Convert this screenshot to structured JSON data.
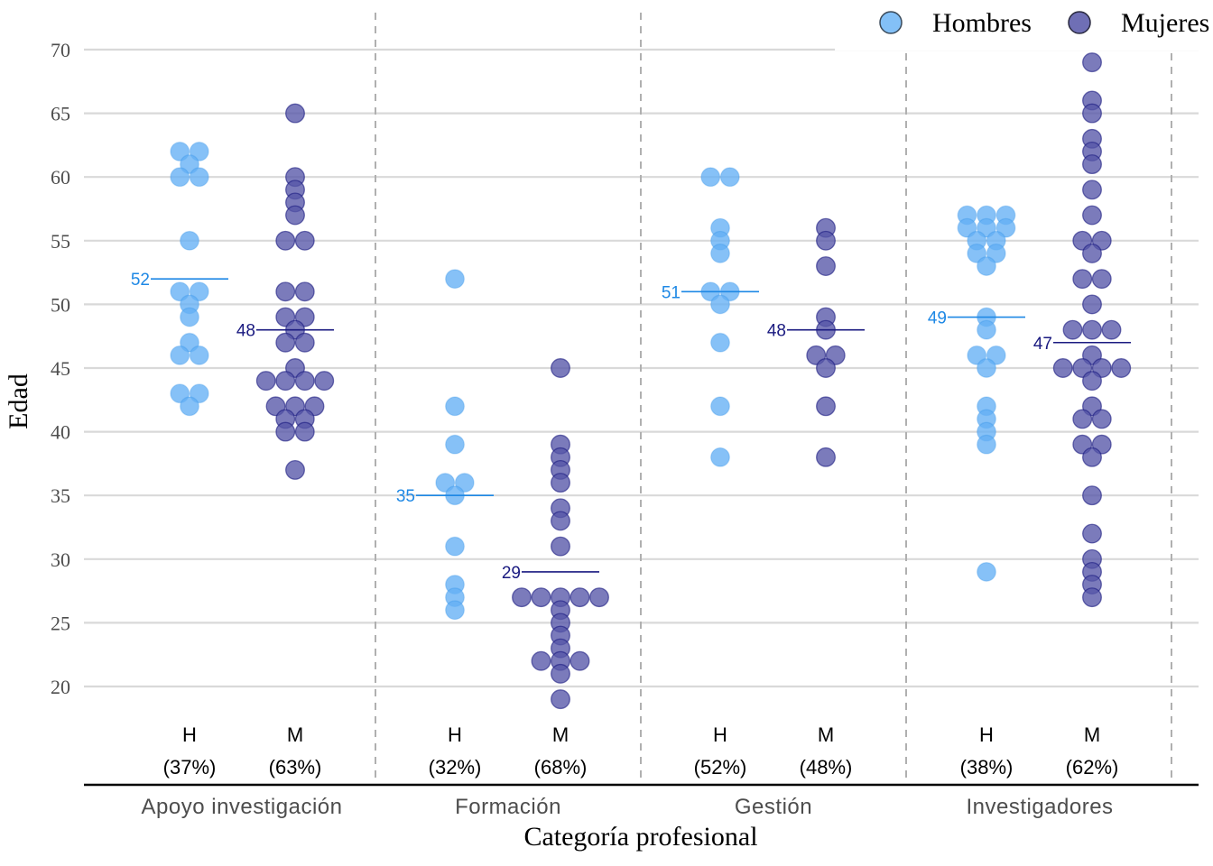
{
  "chart_data": {
    "type": "scatter",
    "xlabel": "Categoría profesional",
    "ylabel": "Edad",
    "ylim": [
      16,
      72
    ],
    "yticks": [
      20,
      25,
      30,
      35,
      40,
      45,
      50,
      55,
      60,
      65,
      70
    ],
    "grid": "horizontal",
    "legend": {
      "placement": "top-right",
      "entries": [
        {
          "name": "Hombres",
          "color": "#1e88e5"
        },
        {
          "name": "Mujeres",
          "color": "#1a1a80"
        }
      ]
    },
    "categories": [
      "Apoyo investigación",
      "Formación",
      "Gestión",
      "Investigadores"
    ],
    "groups": [
      {
        "category": "Apoyo investigación",
        "sex": "H",
        "label": "H",
        "pct": "(37%)",
        "mean": 52,
        "values": [
          62,
          62,
          61,
          60,
          60,
          55,
          51,
          51,
          50,
          49,
          47,
          46,
          46,
          43,
          43,
          42
        ]
      },
      {
        "category": "Apoyo investigación",
        "sex": "M",
        "label": "M",
        "pct": "(63%)",
        "mean": 48,
        "values": [
          65,
          60,
          59,
          58,
          57,
          55,
          55,
          51,
          51,
          49,
          49,
          48,
          47,
          47,
          45,
          44,
          44,
          44,
          44,
          42,
          42,
          42,
          41,
          41,
          40,
          40,
          37
        ]
      },
      {
        "category": "Formación",
        "sex": "H",
        "label": "H",
        "pct": "(32%)",
        "mean": 35,
        "values": [
          52,
          42,
          39,
          36,
          36,
          35,
          31,
          28,
          27,
          26
        ]
      },
      {
        "category": "Formación",
        "sex": "M",
        "label": "M",
        "pct": "(68%)",
        "mean": 29,
        "values": [
          45,
          39,
          38,
          37,
          36,
          34,
          33,
          31,
          27,
          27,
          27,
          27,
          27,
          26,
          25,
          24,
          23,
          22,
          22,
          22,
          21,
          19
        ]
      },
      {
        "category": "Gestión",
        "sex": "H",
        "label": "H",
        "pct": "(52%)",
        "mean": 51,
        "values": [
          60,
          60,
          56,
          55,
          54,
          51,
          51,
          50,
          47,
          42,
          38
        ]
      },
      {
        "category": "Gestión",
        "sex": "M",
        "label": "M",
        "pct": "(48%)",
        "mean": 48,
        "values": [
          56,
          55,
          53,
          49,
          48,
          46,
          46,
          45,
          42,
          38
        ]
      },
      {
        "category": "Investigadores",
        "sex": "H",
        "label": "H",
        "pct": "(38%)",
        "mean": 49,
        "values": [
          57,
          57,
          57,
          56,
          56,
          56,
          55,
          55,
          54,
          54,
          53,
          49,
          48,
          46,
          46,
          45,
          42,
          41,
          40,
          39,
          29
        ]
      },
      {
        "category": "Investigadores",
        "sex": "M",
        "label": "M",
        "pct": "(62%)",
        "mean": 47,
        "values": [
          69,
          66,
          65,
          63,
          62,
          61,
          59,
          57,
          55,
          55,
          54,
          52,
          52,
          50,
          48,
          48,
          48,
          46,
          45,
          45,
          45,
          45,
          44,
          42,
          41,
          41,
          39,
          39,
          38,
          35,
          32,
          30,
          29,
          28,
          27
        ]
      }
    ]
  },
  "style": {
    "colors": {
      "hombres": "#1e88e5",
      "mujeres": "#1a1a80",
      "hombres_fill": "#64b0f5",
      "mujeres_fill": "#5656a8",
      "grid": "#d9d9d9",
      "divider": "#b0b0b0"
    }
  }
}
